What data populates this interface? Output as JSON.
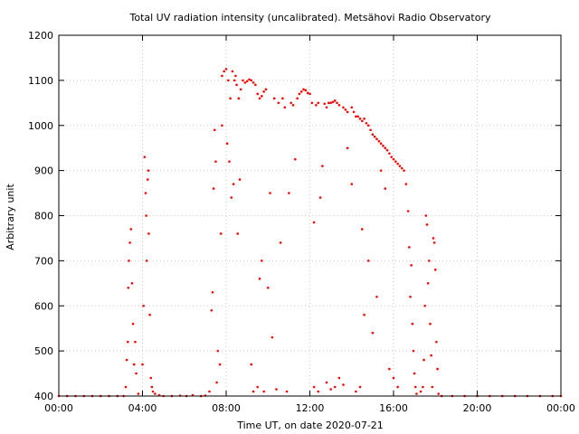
{
  "chart_data": {
    "type": "scatter",
    "title": "Total UV radiation intensity (uncalibrated). Metsähovi Radio Observatory",
    "xlabel": "Time UT, on date 2020-07-21",
    "ylabel": "Arbitrary unit",
    "xlim": [
      0,
      24
    ],
    "ylim": [
      400,
      1200
    ],
    "x_tick_values": [
      0,
      4,
      8,
      12,
      16,
      20,
      24
    ],
    "x_tick_labels": [
      "00:00",
      "04:00",
      "08:00",
      "12:00",
      "16:00",
      "20:00",
      "00:00"
    ],
    "y_tick_values": [
      400,
      500,
      600,
      700,
      800,
      900,
      1000,
      1100,
      1200
    ],
    "y_tick_labels": [
      "400",
      "500",
      "600",
      "700",
      "800",
      "900",
      "1000",
      "1100",
      "1200"
    ],
    "grid": true,
    "legend": "none",
    "colors": {
      "points": "#ff0000",
      "axis": "#000000",
      "grid": "#c8c8c8"
    },
    "series": [
      {
        "values": [
          [
            0.0,
            400
          ],
          [
            0.4,
            400
          ],
          [
            0.8,
            400
          ],
          [
            1.2,
            400
          ],
          [
            1.6,
            400
          ],
          [
            2.0,
            400
          ],
          [
            2.4,
            400
          ],
          [
            2.8,
            400
          ],
          [
            3.1,
            400
          ],
          [
            3.2,
            420
          ],
          [
            3.25,
            480
          ],
          [
            3.3,
            520
          ],
          [
            3.32,
            640
          ],
          [
            3.35,
            700
          ],
          [
            3.4,
            740
          ],
          [
            3.45,
            770
          ],
          [
            3.5,
            650
          ],
          [
            3.55,
            560
          ],
          [
            3.6,
            470
          ],
          [
            3.65,
            520
          ],
          [
            3.7,
            450
          ],
          [
            3.8,
            405
          ],
          [
            4.0,
            470
          ],
          [
            4.05,
            600
          ],
          [
            4.1,
            930
          ],
          [
            4.15,
            850
          ],
          [
            4.18,
            800
          ],
          [
            4.2,
            700
          ],
          [
            4.25,
            880
          ],
          [
            4.28,
            900
          ],
          [
            4.3,
            760
          ],
          [
            4.35,
            580
          ],
          [
            4.4,
            440
          ],
          [
            4.45,
            420
          ],
          [
            4.5,
            410
          ],
          [
            4.6,
            405
          ],
          [
            4.8,
            402
          ],
          [
            5.0,
            400
          ],
          [
            5.4,
            400
          ],
          [
            5.8,
            401
          ],
          [
            6.1,
            400
          ],
          [
            6.4,
            402
          ],
          [
            6.8,
            400
          ],
          [
            7.0,
            401
          ],
          [
            7.2,
            410
          ],
          [
            7.3,
            590
          ],
          [
            7.35,
            630
          ],
          [
            7.4,
            860
          ],
          [
            7.45,
            990
          ],
          [
            7.5,
            920
          ],
          [
            7.55,
            430
          ],
          [
            7.6,
            500
          ],
          [
            7.7,
            470
          ],
          [
            7.75,
            760
          ],
          [
            7.8,
            1000
          ],
          [
            7.8,
            1110
          ],
          [
            7.9,
            1120
          ],
          [
            8.0,
            1125
          ],
          [
            8.05,
            960
          ],
          [
            8.1,
            1100
          ],
          [
            8.15,
            920
          ],
          [
            8.2,
            1060
          ],
          [
            8.25,
            840
          ],
          [
            8.3,
            1120
          ],
          [
            8.35,
            870
          ],
          [
            8.4,
            1100
          ],
          [
            8.45,
            1110
          ],
          [
            8.5,
            1090
          ],
          [
            8.55,
            760
          ],
          [
            8.6,
            1060
          ],
          [
            8.65,
            880
          ],
          [
            8.7,
            1080
          ],
          [
            8.8,
            1100
          ],
          [
            8.9,
            1095
          ],
          [
            9.0,
            1098
          ],
          [
            9.1,
            1102
          ],
          [
            9.2,
            1100
          ],
          [
            9.3,
            1095
          ],
          [
            9.4,
            1090
          ],
          [
            9.5,
            1070
          ],
          [
            9.6,
            1060
          ],
          [
            9.7,
            1065
          ],
          [
            9.8,
            1075
          ],
          [
            9.9,
            1080
          ],
          [
            9.2,
            470
          ],
          [
            9.3,
            410
          ],
          [
            9.5,
            420
          ],
          [
            9.6,
            660
          ],
          [
            9.7,
            700
          ],
          [
            9.8,
            410
          ],
          [
            10.0,
            640
          ],
          [
            10.1,
            850
          ],
          [
            10.2,
            530
          ],
          [
            10.3,
            1060
          ],
          [
            10.4,
            415
          ],
          [
            10.5,
            1050
          ],
          [
            10.6,
            740
          ],
          [
            10.7,
            1060
          ],
          [
            10.8,
            1040
          ],
          [
            10.9,
            410
          ],
          [
            11.0,
            850
          ],
          [
            11.1,
            1050
          ],
          [
            11.2,
            1045
          ],
          [
            11.3,
            925
          ],
          [
            11.4,
            1060
          ],
          [
            11.5,
            1070
          ],
          [
            11.6,
            1075
          ],
          [
            11.7,
            1080
          ],
          [
            11.8,
            1078
          ],
          [
            11.9,
            1072
          ],
          [
            12.0,
            1070
          ],
          [
            12.1,
            1050
          ],
          [
            12.2,
            785
          ],
          [
            12.3,
            1045
          ],
          [
            12.4,
            1050
          ],
          [
            12.5,
            840
          ],
          [
            12.6,
            910
          ],
          [
            12.7,
            1048
          ],
          [
            12.8,
            1040
          ],
          [
            12.9,
            1050
          ],
          [
            13.0,
            1050
          ],
          [
            13.1,
            1052
          ],
          [
            13.2,
            1055
          ],
          [
            13.3,
            1050
          ],
          [
            13.4,
            1045
          ],
          [
            12.2,
            420
          ],
          [
            12.4,
            410
          ],
          [
            12.8,
            430
          ],
          [
            13.0,
            415
          ],
          [
            13.2,
            420
          ],
          [
            13.4,
            440
          ],
          [
            13.6,
            425
          ],
          [
            13.8,
            950
          ],
          [
            14.0,
            870
          ],
          [
            14.2,
            410
          ],
          [
            14.4,
            420
          ],
          [
            13.6,
            1040
          ],
          [
            13.7,
            1035
          ],
          [
            13.8,
            1030
          ],
          [
            14.0,
            1040
          ],
          [
            14.1,
            1030
          ],
          [
            14.2,
            1020
          ],
          [
            14.3,
            1020
          ],
          [
            14.4,
            1015
          ],
          [
            14.5,
            1010
          ],
          [
            14.6,
            1015
          ],
          [
            14.7,
            1005
          ],
          [
            14.8,
            1000
          ],
          [
            14.9,
            990
          ],
          [
            15.0,
            980
          ],
          [
            15.1,
            975
          ],
          [
            15.2,
            970
          ],
          [
            15.3,
            965
          ],
          [
            15.4,
            960
          ],
          [
            15.5,
            955
          ],
          [
            15.6,
            950
          ],
          [
            15.7,
            945
          ],
          [
            15.8,
            938
          ],
          [
            15.9,
            930
          ],
          [
            16.0,
            925
          ],
          [
            16.1,
            920
          ],
          [
            16.2,
            915
          ],
          [
            16.3,
            910
          ],
          [
            16.4,
            905
          ],
          [
            16.5,
            900
          ],
          [
            14.5,
            770
          ],
          [
            14.6,
            580
          ],
          [
            14.8,
            700
          ],
          [
            15.0,
            540
          ],
          [
            15.2,
            620
          ],
          [
            15.4,
            900
          ],
          [
            15.6,
            860
          ],
          [
            15.8,
            460
          ],
          [
            16.0,
            440
          ],
          [
            16.2,
            420
          ],
          [
            16.6,
            870
          ],
          [
            16.7,
            810
          ],
          [
            16.75,
            730
          ],
          [
            16.8,
            620
          ],
          [
            16.85,
            690
          ],
          [
            16.9,
            560
          ],
          [
            16.95,
            500
          ],
          [
            17.0,
            450
          ],
          [
            17.05,
            420
          ],
          [
            17.1,
            405
          ],
          [
            17.3,
            410
          ],
          [
            17.4,
            420
          ],
          [
            17.45,
            480
          ],
          [
            17.5,
            600
          ],
          [
            17.55,
            800
          ],
          [
            17.6,
            780
          ],
          [
            17.65,
            650
          ],
          [
            17.7,
            700
          ],
          [
            17.75,
            560
          ],
          [
            17.8,
            490
          ],
          [
            17.85,
            420
          ],
          [
            17.9,
            750
          ],
          [
            17.95,
            740
          ],
          [
            18.0,
            680
          ],
          [
            18.05,
            520
          ],
          [
            18.1,
            460
          ],
          [
            18.15,
            405
          ],
          [
            18.3,
            400
          ],
          [
            18.8,
            400
          ],
          [
            19.4,
            400
          ],
          [
            20.0,
            400
          ],
          [
            20.6,
            400
          ],
          [
            21.2,
            400
          ],
          [
            21.8,
            400
          ],
          [
            22.4,
            400
          ],
          [
            23.0,
            400
          ],
          [
            23.6,
            400
          ],
          [
            24.0,
            400
          ]
        ]
      }
    ]
  }
}
